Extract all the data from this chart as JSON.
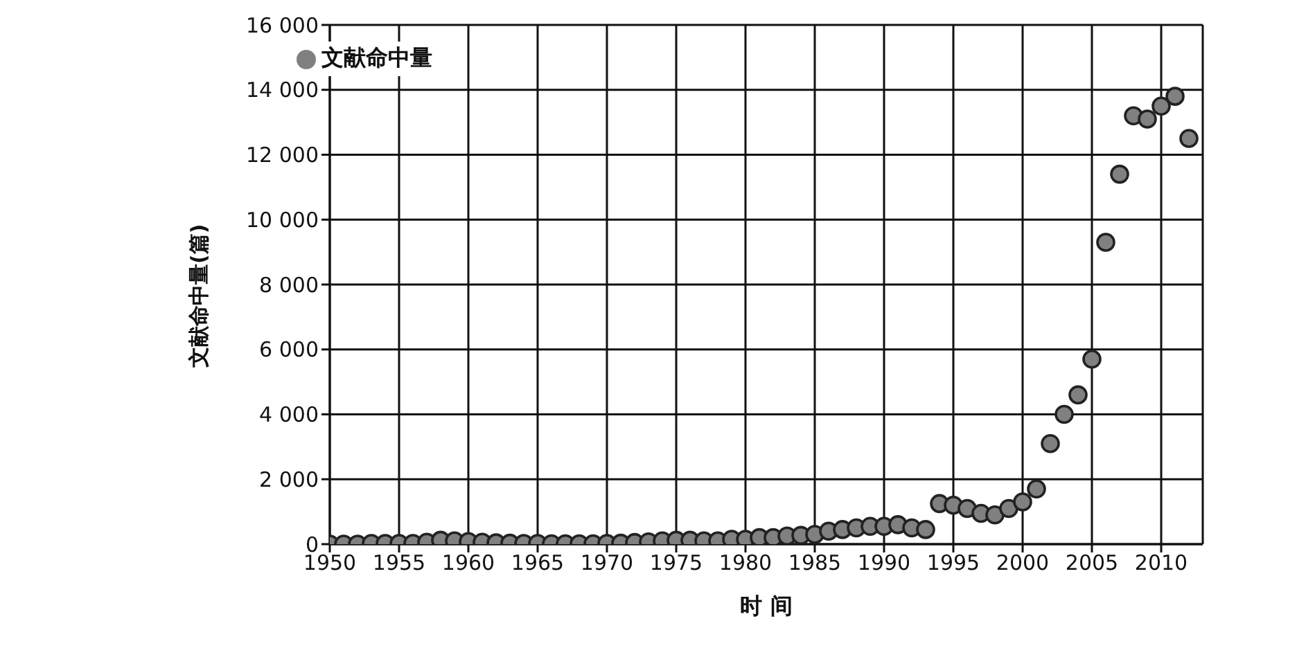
{
  "chart_data": {
    "type": "scatter",
    "xlabel": "时 间",
    "ylabel": "文献命中量(篇)",
    "x": [
      1950,
      1951,
      1952,
      1953,
      1954,
      1955,
      1956,
      1957,
      1958,
      1959,
      1960,
      1961,
      1962,
      1963,
      1964,
      1965,
      1966,
      1967,
      1968,
      1969,
      1970,
      1971,
      1972,
      1973,
      1974,
      1975,
      1976,
      1977,
      1978,
      1979,
      1980,
      1981,
      1982,
      1983,
      1984,
      1985,
      1986,
      1987,
      1988,
      1989,
      1990,
      1991,
      1992,
      1993,
      1994,
      1995,
      1996,
      1997,
      1998,
      1999,
      2000,
      2001,
      2002,
      2003,
      2004,
      2005,
      2006,
      2007,
      2008,
      2009,
      2010,
      2011,
      2012
    ],
    "series": [
      {
        "name": "文献命中量",
        "color": "#808080",
        "values": [
          0,
          0,
          0,
          20,
          20,
          20,
          20,
          60,
          120,
          100,
          80,
          60,
          40,
          30,
          20,
          20,
          10,
          10,
          10,
          10,
          20,
          30,
          50,
          70,
          100,
          120,
          120,
          100,
          100,
          150,
          150,
          200,
          200,
          250,
          270,
          300,
          400,
          450,
          500,
          550,
          550,
          600,
          500,
          450,
          1250,
          1200,
          1100,
          950,
          900,
          1100,
          1300,
          1700,
          3100,
          4000,
          4600,
          5700,
          9300,
          11400,
          13200,
          13100,
          13500,
          13800,
          12500
        ]
      }
    ],
    "xlim": [
      1950,
      2013
    ],
    "xticks": [
      1950,
      1955,
      1960,
      1965,
      1970,
      1975,
      1980,
      1985,
      1990,
      1995,
      2000,
      2005,
      2010
    ],
    "ylim": [
      0,
      16000
    ],
    "yticks": [
      0,
      {
        "value": 2000,
        "label": "2 000"
      },
      {
        "value": 4000,
        "label": "4 000"
      },
      {
        "value": 6000,
        "label": "6 000"
      },
      {
        "value": 8000,
        "label": "8 000"
      },
      {
        "value": 10000,
        "label": "10 000"
      },
      {
        "value": 12000,
        "label": "12 000"
      },
      {
        "value": 14000,
        "label": "14 000"
      },
      {
        "value": 16000,
        "label": "16 000"
      }
    ],
    "grid": true,
    "legend": "top left",
    "marker": "circle"
  }
}
